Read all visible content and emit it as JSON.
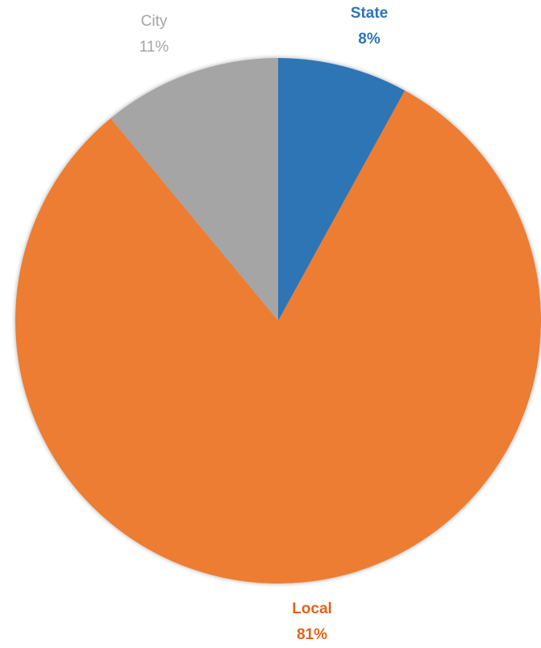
{
  "chart_data": {
    "type": "pie",
    "title": "",
    "slices": [
      {
        "label": "State",
        "value": 8,
        "percent_label": "8%",
        "color": "#2e75b6",
        "label_color": "#2e75b6",
        "label_bold": true
      },
      {
        "label": "Local",
        "value": 81,
        "percent_label": "81%",
        "color": "#ed7d31",
        "label_color": "#e0641b",
        "label_bold": true
      },
      {
        "label": "City",
        "value": 11,
        "percent_label": "11%",
        "color": "#a5a5a5",
        "label_color": "#a5a5a5",
        "label_bold": false
      }
    ],
    "start_angle": "12 o'clock",
    "direction": "clockwise",
    "legend": "none",
    "data_labels": "outside"
  }
}
